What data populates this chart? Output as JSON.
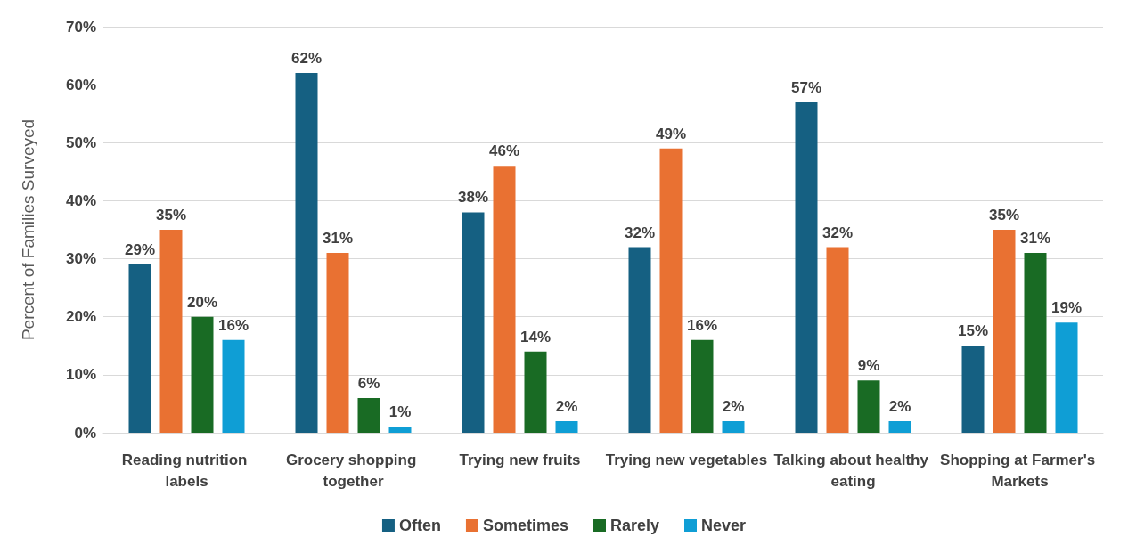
{
  "chart_data": {
    "type": "bar",
    "ylabel": "Percent of Families Surveyed",
    "categories": [
      "Reading nutrition labels",
      "Grocery shopping together",
      "Trying new fruits",
      "Trying new vegetables",
      "Talking about healthy eating",
      "Shopping at Farmer's Markets"
    ],
    "series": [
      {
        "name": "Often",
        "color": "#156082",
        "values": [
          29,
          62,
          38,
          32,
          57,
          15
        ],
        "value_labels": [
          "29%",
          "62%",
          "38%",
          "32%",
          "57%",
          "15%"
        ]
      },
      {
        "name": "Sometimes",
        "color": "#e97132",
        "values": [
          35,
          31,
          46,
          49,
          32,
          35
        ],
        "value_labels": [
          "35%",
          "31%",
          "46%",
          "49%",
          "32%",
          "35%"
        ]
      },
      {
        "name": "Rarely",
        "color": "#196b24",
        "values": [
          20,
          6,
          14,
          16,
          9,
          31
        ],
        "value_labels": [
          "20%",
          "6%",
          "14%",
          "16%",
          "9%",
          "31%"
        ]
      },
      {
        "name": "Never",
        "color": "#0f9ed5",
        "values": [
          16,
          1,
          2,
          2,
          2,
          19
        ],
        "value_labels": [
          "16%",
          "1%",
          "2%",
          "2%",
          "2%",
          "19%"
        ]
      }
    ],
    "ylim": [
      0,
      70
    ],
    "yticks": [
      {
        "value": 0,
        "label": "0%"
      },
      {
        "value": 10,
        "label": "10%"
      },
      {
        "value": 20,
        "label": "20%"
      },
      {
        "value": 30,
        "label": "30%"
      },
      {
        "value": 40,
        "label": "40%"
      },
      {
        "value": 50,
        "label": "50%"
      },
      {
        "value": 60,
        "label": "60%"
      },
      {
        "value": 70,
        "label": "70%"
      }
    ],
    "grid": "y",
    "legend": "bottom"
  }
}
